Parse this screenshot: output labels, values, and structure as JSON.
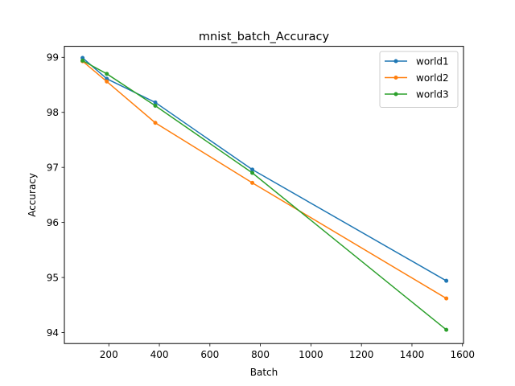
{
  "chart_data": {
    "type": "line",
    "title": "mnist_batch_Accuracy",
    "xlabel": "Batch",
    "ylabel": "Accuracy",
    "xlim": [
      24,
      1604
    ],
    "ylim": [
      93.8,
      99.2
    ],
    "x_ticks": [
      200,
      400,
      600,
      800,
      1000,
      1200,
      1400,
      1600
    ],
    "y_ticks": [
      94,
      95,
      96,
      97,
      98,
      99
    ],
    "grid": false,
    "legend_position": "top-right",
    "series": [
      {
        "name": "world1",
        "color": "#1f77b4",
        "x": [
          96,
          192,
          384,
          768,
          1536
        ],
        "y": [
          98.99,
          98.61,
          98.18,
          96.96,
          94.94
        ]
      },
      {
        "name": "world2",
        "color": "#ff7f0e",
        "x": [
          96,
          192,
          384,
          768,
          1536
        ],
        "y": [
          98.93,
          98.56,
          97.81,
          96.72,
          94.62
        ]
      },
      {
        "name": "world3",
        "color": "#2ca02c",
        "x": [
          96,
          192,
          384,
          768,
          1536
        ],
        "y": [
          98.94,
          98.7,
          98.12,
          96.9,
          94.05
        ]
      }
    ]
  }
}
